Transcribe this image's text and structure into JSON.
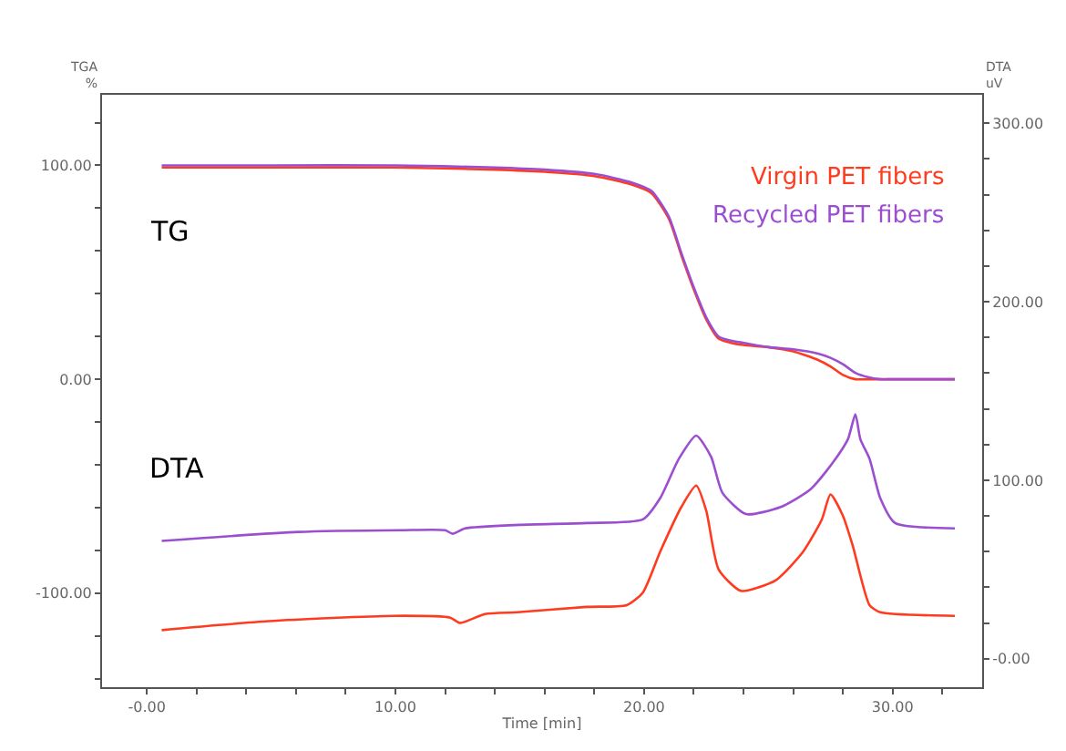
{
  "chart_data": {
    "type": "line",
    "xlabel": "Time [min]",
    "ylabel": "TGA\n%",
    "y2label": "DTA\nuV",
    "annotations": [
      "TG",
      "DTA"
    ],
    "xlim": [
      -1.8,
      33.6
    ],
    "xticks": [
      {
        "value": 0,
        "label": "-0.00"
      },
      {
        "value": 2,
        "label": null
      },
      {
        "value": 4,
        "label": null
      },
      {
        "value": 6,
        "label": null
      },
      {
        "value": 8,
        "label": null
      },
      {
        "value": 10,
        "label": "10.00"
      },
      {
        "value": 12,
        "label": null
      },
      {
        "value": 14,
        "label": null
      },
      {
        "value": 16,
        "label": null
      },
      {
        "value": 18,
        "label": null
      },
      {
        "value": 20,
        "label": "20.00"
      },
      {
        "value": 22,
        "label": null
      },
      {
        "value": 24,
        "label": null
      },
      {
        "value": 26,
        "label": null
      },
      {
        "value": 28,
        "label": null
      },
      {
        "value": 30,
        "label": "30.00"
      },
      {
        "value": 32,
        "label": null
      }
    ],
    "ylim": [
      -144,
      133
    ],
    "yticks": [
      {
        "value": -140,
        "label": null
      },
      {
        "value": -120,
        "label": null
      },
      {
        "value": -100,
        "label": "-100.00"
      },
      {
        "value": -80,
        "label": null
      },
      {
        "value": -60,
        "label": null
      },
      {
        "value": -40,
        "label": null
      },
      {
        "value": -20,
        "label": null
      },
      {
        "value": 0,
        "label": "0.00"
      },
      {
        "value": 20,
        "label": null
      },
      {
        "value": 40,
        "label": null
      },
      {
        "value": 60,
        "label": null
      },
      {
        "value": 80,
        "label": null
      },
      {
        "value": 100,
        "label": "100.00"
      },
      {
        "value": 120,
        "label": null
      }
    ],
    "y2lim": [
      -16,
      316
    ],
    "y2ticks": [
      {
        "value": 0,
        "label": "-0.00"
      },
      {
        "value": 20,
        "label": null
      },
      {
        "value": 40,
        "label": null
      },
      {
        "value": 60,
        "label": null
      },
      {
        "value": 80,
        "label": null
      },
      {
        "value": 100,
        "label": "100.00"
      },
      {
        "value": 120,
        "label": null
      },
      {
        "value": 140,
        "label": null
      },
      {
        "value": 160,
        "label": null
      },
      {
        "value": 180,
        "label": null
      },
      {
        "value": 200,
        "label": "200.00"
      },
      {
        "value": 220,
        "label": null
      },
      {
        "value": 240,
        "label": null
      },
      {
        "value": 260,
        "label": null
      },
      {
        "value": 280,
        "label": null
      },
      {
        "value": 300,
        "label": "300.00"
      }
    ],
    "marker": "none",
    "line_style": "solid",
    "series": [
      {
        "name": "Virgin PET fibers",
        "color": "#ff3b1f",
        "x": [
          0.6,
          5,
          10,
          14,
          16,
          18,
          19.5,
          20.3,
          21,
          21.5,
          22,
          22.5,
          23,
          23.5,
          24,
          25,
          26,
          27,
          27.5,
          28,
          28.5,
          29,
          32.5
        ],
        "values": [
          99,
          99,
          99,
          98,
          97,
          95,
          91,
          87,
          75,
          58,
          42,
          28,
          19,
          17,
          16,
          15,
          13,
          9,
          6,
          2,
          0,
          0,
          0
        ]
      },
      {
        "name": "Recycled PET fibers",
        "color": "#9b4fd0",
        "x": [
          0.6,
          5,
          10,
          14,
          16,
          18,
          19.5,
          20.3,
          21,
          21.5,
          22,
          22.5,
          23,
          23.5,
          24,
          25,
          26,
          27,
          27.5,
          28,
          28.5,
          29,
          29.5,
          30,
          32.5
        ],
        "values": [
          100,
          100,
          100,
          99,
          98,
          96,
          92,
          88,
          76,
          59,
          43,
          29,
          20,
          18,
          17,
          15,
          14,
          12,
          10,
          7,
          3,
          1,
          0,
          0,
          0
        ]
      },
      {
        "color": "#ff3b1f",
        "axis": "y2",
        "x": [
          0.6,
          4.9,
          9.9,
          12.2,
          12.6,
          13.6,
          14.9,
          17.7,
          19.3,
          19.95,
          20.65,
          21.5,
          22.1,
          22.5,
          23.0,
          23.9,
          25.3,
          26.4,
          27.15,
          27.5,
          28.0,
          28.4,
          29.07,
          29.5,
          32.5
        ],
        "values": [
          16,
          21,
          24,
          23,
          20,
          25,
          26,
          29,
          30,
          37,
          60,
          85,
          97,
          83,
          50,
          38,
          44,
          60,
          78,
          92,
          80,
          63,
          30,
          26,
          24
        ]
      },
      {
        "color": "#9b4fd0",
        "axis": "y2",
        "x": [
          0.6,
          6.1,
          10.2,
          12.0,
          12.3,
          12.8,
          15,
          17.7,
          19.95,
          20.65,
          21.4,
          22.1,
          22.7,
          23.15,
          24.1,
          25.5,
          26.7,
          27.6,
          28.2,
          28.5,
          28.7,
          29.07,
          29.5,
          30.1,
          32.5
        ],
        "values": [
          66,
          71,
          72,
          72,
          70,
          73,
          75,
          76,
          78,
          90,
          112,
          125,
          113,
          93,
          81,
          85,
          95,
          110,
          123,
          137,
          123,
          112,
          90,
          76,
          73
        ]
      }
    ]
  }
}
